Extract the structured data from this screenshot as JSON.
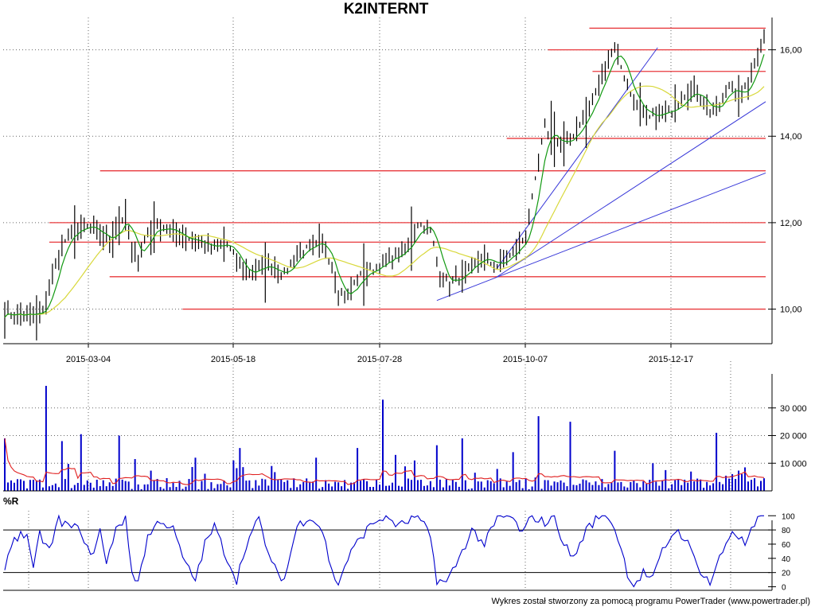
{
  "chart_title": "K2INTERNT",
  "wr_panel_label": "%R",
  "credit": "Wykres został stworzony za pomocą programu PowerTrader (www.powertrader.pl)",
  "colors": {
    "price_bar": "#000000",
    "ma_short": "#119911",
    "ma_long": "#d8d83a",
    "support_line": "#e8383c",
    "trend_line": "#3636d8",
    "volume_bar": "#0000cc",
    "volume_avg": "#e02020",
    "wr_line": "#0000cc",
    "grid": "#666666"
  },
  "chart_data": [
    {
      "type": "candlestick",
      "x_tick_labels": [
        "2015-03-04",
        "2015-05-18",
        "2015-07-28",
        "2015-10-07",
        "2015-12-17"
      ],
      "y_tick_labels": [
        "10,00",
        "12,00",
        "14,00",
        "16,00"
      ],
      "y_ticks": [
        10,
        12,
        14,
        16
      ],
      "ylim": [
        9.2,
        16.6
      ],
      "n_bars": 240,
      "price_anchors": [
        [
          0,
          9.9
        ],
        [
          8,
          9.85
        ],
        [
          12,
          9.9
        ],
        [
          14,
          10.5
        ],
        [
          18,
          11.5
        ],
        [
          22,
          11.8
        ],
        [
          26,
          11.9
        ],
        [
          30,
          11.7
        ],
        [
          33,
          11.6
        ],
        [
          38,
          12.2
        ],
        [
          40,
          11.3
        ],
        [
          42,
          11.2
        ],
        [
          45,
          11.8
        ],
        [
          50,
          11.9
        ],
        [
          55,
          11.7
        ],
        [
          60,
          11.6
        ],
        [
          65,
          11.4
        ],
        [
          70,
          11.5
        ],
        [
          73,
          11.1
        ],
        [
          76,
          10.8
        ],
        [
          78,
          10.9
        ],
        [
          83,
          11.0
        ],
        [
          88,
          10.8
        ],
        [
          92,
          11.3
        ],
        [
          96,
          11.4
        ],
        [
          100,
          11.5
        ],
        [
          103,
          11.0
        ],
        [
          105,
          10.4
        ],
        [
          108,
          10.3
        ],
        [
          111,
          10.7
        ],
        [
          115,
          10.9
        ],
        [
          120,
          11.1
        ],
        [
          125,
          11.3
        ],
        [
          128,
          11.6
        ],
        [
          130,
          12.0
        ],
        [
          134,
          11.8
        ],
        [
          137,
          10.8
        ],
        [
          140,
          10.6
        ],
        [
          145,
          10.8
        ],
        [
          150,
          11.2
        ],
        [
          155,
          11.0
        ],
        [
          160,
          11.3
        ],
        [
          164,
          11.7
        ],
        [
          166,
          12.5
        ],
        [
          168,
          13.4
        ],
        [
          170,
          14.2
        ],
        [
          172,
          14.0
        ],
        [
          175,
          13.8
        ],
        [
          178,
          13.9
        ],
        [
          180,
          14.2
        ],
        [
          183,
          14.5
        ],
        [
          186,
          15.0
        ],
        [
          190,
          15.8
        ],
        [
          192,
          16.1
        ],
        [
          195,
          15.4
        ],
        [
          198,
          14.8
        ],
        [
          202,
          14.4
        ],
        [
          206,
          14.5
        ],
        [
          210,
          14.6
        ],
        [
          214,
          15.0
        ],
        [
          218,
          15.0
        ],
        [
          222,
          14.6
        ],
        [
          225,
          14.7
        ],
        [
          228,
          15.2
        ],
        [
          232,
          14.9
        ],
        [
          235,
          15.4
        ],
        [
          238,
          16.2
        ],
        [
          239,
          16.3
        ]
      ],
      "ma_short_period": 5,
      "ma_long_period": 20,
      "horizontal_levels": [
        {
          "y": 10.0,
          "from_bar": 56,
          "to_bar": 240
        },
        {
          "y": 10.75,
          "from_bar": 33,
          "to_bar": 240
        },
        {
          "y": 11.55,
          "from_bar": 14,
          "to_bar": 240
        },
        {
          "y": 12.0,
          "from_bar": 14,
          "to_bar": 240
        },
        {
          "y": 13.2,
          "from_bar": 30,
          "to_bar": 240
        },
        {
          "y": 13.95,
          "from_bar": 158,
          "to_bar": 240
        },
        {
          "y": 15.5,
          "from_bar": 185,
          "to_bar": 240
        },
        {
          "y": 16.0,
          "from_bar": 171,
          "to_bar": 240
        },
        {
          "y": 16.5,
          "from_bar": 184,
          "to_bar": 240
        }
      ],
      "trend_lines": [
        {
          "from": [
            136,
            10.2
          ],
          "to": [
            240,
            13.15
          ]
        },
        {
          "from": [
            155,
            10.75
          ],
          "to": [
            240,
            14.8
          ]
        },
        {
          "from": [
            155,
            10.95
          ],
          "to": [
            206,
            16.05
          ]
        }
      ]
    },
    {
      "type": "bar",
      "name": "volume",
      "y_tick_labels": [
        "10 000",
        "20 000",
        "30 000"
      ],
      "y_ticks": [
        10000,
        20000,
        30000
      ],
      "ylim": [
        0,
        40000
      ],
      "spikes": [
        [
          0,
          19000
        ],
        [
          13,
          38000
        ],
        [
          18,
          18000
        ],
        [
          24,
          20500
        ],
        [
          36,
          20000
        ],
        [
          41,
          11500
        ],
        [
          60,
          12000
        ],
        [
          72,
          11000
        ],
        [
          74,
          15500
        ],
        [
          84,
          9000
        ],
        [
          98,
          12000
        ],
        [
          111,
          15500
        ],
        [
          119,
          33000
        ],
        [
          123,
          13000
        ],
        [
          129,
          11000
        ],
        [
          136,
          16500
        ],
        [
          144,
          19000
        ],
        [
          160,
          14000
        ],
        [
          168,
          27000
        ],
        [
          178,
          25000
        ],
        [
          192,
          14500
        ],
        [
          204,
          10000
        ],
        [
          224,
          21000
        ],
        [
          233,
          8500
        ]
      ],
      "avg_period": 10
    },
    {
      "type": "line",
      "name": "%R",
      "y_tick_labels": [
        "0",
        "20",
        "40",
        "60",
        "80",
        "100"
      ],
      "y_ticks": [
        0,
        20,
        40,
        60,
        80,
        100
      ],
      "ylim": [
        -5,
        107
      ],
      "reference_levels": [
        20,
        80
      ],
      "value_anchors": [
        [
          0,
          30
        ],
        [
          3,
          70
        ],
        [
          7,
          75
        ],
        [
          9,
          20
        ],
        [
          11,
          75
        ],
        [
          14,
          50
        ],
        [
          17,
          95
        ],
        [
          20,
          85
        ],
        [
          24,
          80
        ],
        [
          27,
          40
        ],
        [
          30,
          80
        ],
        [
          32,
          30
        ],
        [
          35,
          85
        ],
        [
          38,
          95
        ],
        [
          40,
          20
        ],
        [
          42,
          8
        ],
        [
          45,
          70
        ],
        [
          49,
          95
        ],
        [
          53,
          80
        ],
        [
          57,
          30
        ],
        [
          60,
          10
        ],
        [
          63,
          60
        ],
        [
          66,
          85
        ],
        [
          70,
          40
        ],
        [
          73,
          10
        ],
        [
          76,
          60
        ],
        [
          80,
          95
        ],
        [
          84,
          30
        ],
        [
          88,
          10
        ],
        [
          92,
          85
        ],
        [
          96,
          100
        ],
        [
          100,
          80
        ],
        [
          103,
          20
        ],
        [
          105,
          5
        ],
        [
          108,
          40
        ],
        [
          112,
          70
        ],
        [
          116,
          90
        ],
        [
          120,
          100
        ],
        [
          124,
          85
        ],
        [
          128,
          95
        ],
        [
          130,
          100
        ],
        [
          134,
          70
        ],
        [
          136,
          10
        ],
        [
          139,
          5
        ],
        [
          143,
          40
        ],
        [
          147,
          80
        ],
        [
          151,
          60
        ],
        [
          155,
          95
        ],
        [
          159,
          100
        ],
        [
          163,
          75
        ],
        [
          166,
          100
        ],
        [
          170,
          90
        ],
        [
          173,
          100
        ],
        [
          176,
          60
        ],
        [
          179,
          40
        ],
        [
          183,
          80
        ],
        [
          187,
          100
        ],
        [
          190,
          100
        ],
        [
          193,
          70
        ],
        [
          196,
          20
        ],
        [
          198,
          2
        ],
        [
          201,
          20
        ],
        [
          204,
          10
        ],
        [
          207,
          50
        ],
        [
          211,
          80
        ],
        [
          214,
          70
        ],
        [
          218,
          30
        ],
        [
          222,
          5
        ],
        [
          225,
          40
        ],
        [
          229,
          80
        ],
        [
          233,
          60
        ],
        [
          236,
          85
        ],
        [
          238,
          100
        ],
        [
          240,
          95
        ]
      ]
    }
  ]
}
